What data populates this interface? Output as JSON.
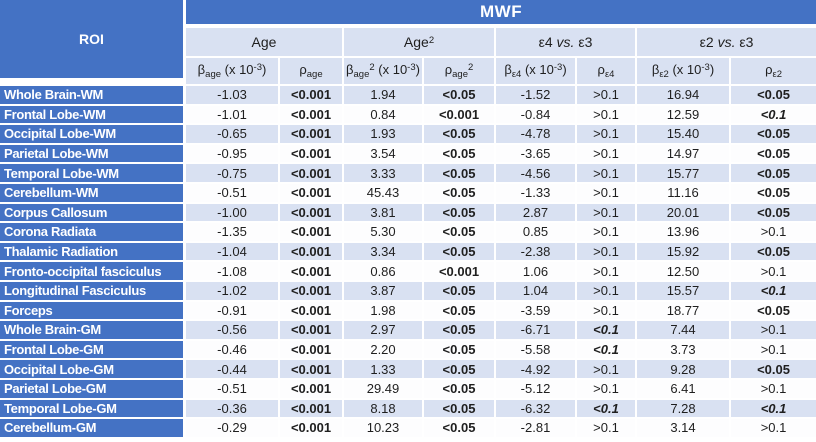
{
  "colors": {
    "header_blue": "#4472C4",
    "band_light": "#D9E1F2",
    "band_white": "#FDFDFE",
    "text_dark": "#1F1F1F"
  },
  "chart_data": {
    "type": "table",
    "title": "MWF",
    "row_header": "ROI",
    "column_groups": [
      {
        "id": "age",
        "pre": "Age",
        "sup": "",
        "it": "",
        "post": ""
      },
      {
        "id": "age2",
        "pre": "Age",
        "sup": "2",
        "it": "",
        "post": ""
      },
      {
        "id": "e4-vs-e3",
        "pre": "ε4 ",
        "sup": "",
        "it": "vs.",
        "post": " ε3"
      },
      {
        "id": "e2-vs-e3",
        "pre": "ε2 ",
        "sup": "",
        "it": "vs.",
        "post": " ε3"
      }
    ],
    "columns": [
      {
        "id": "beta-age",
        "sym": "β",
        "sub": "age",
        "sup": "",
        "unit": " (x 10",
        "exp": "-3",
        "close": ")"
      },
      {
        "id": "p-age",
        "sym": "ρ",
        "sub": "age",
        "sup": "",
        "unit": "",
        "exp": "",
        "close": ""
      },
      {
        "id": "beta-age2",
        "sym": "β",
        "sub": "age",
        "sup": "2",
        "unit": " (x 10",
        "exp": "-3",
        "close": ")"
      },
      {
        "id": "p-age2",
        "sym": "ρ",
        "sub": "age",
        "sup": "2",
        "unit": "",
        "exp": "",
        "close": ""
      },
      {
        "id": "beta-e4",
        "sym": "β",
        "sub": "ε4",
        "sup": "",
        "unit": " (x 10",
        "exp": "-3",
        "close": ")"
      },
      {
        "id": "p-e4",
        "sym": "ρ",
        "sub": "ε4",
        "sup": "",
        "unit": "",
        "exp": "",
        "close": ""
      },
      {
        "id": "beta-e2",
        "sym": "β",
        "sub": "ε2",
        "sup": "",
        "unit": " (x 10",
        "exp": "-3",
        "close": ")"
      },
      {
        "id": "p-e2",
        "sym": "ρ",
        "sub": "ε2",
        "sup": "",
        "unit": "",
        "exp": "",
        "close": ""
      }
    ],
    "rows": [
      {
        "roi": "Whole Brain-WM",
        "values": [
          "-1.03",
          "<0.001",
          "1.94",
          "<0.05",
          "-1.52",
          ">0.1",
          "16.94",
          "<0.05"
        ]
      },
      {
        "roi": "Frontal Lobe-WM",
        "values": [
          "-1.01",
          "<0.001",
          "0.84",
          "<0.001",
          "-0.84",
          ">0.1",
          "12.59",
          "<0.1"
        ]
      },
      {
        "roi": "Occipital Lobe-WM",
        "values": [
          "-0.65",
          "<0.001",
          "1.93",
          "<0.05",
          "-4.78",
          ">0.1",
          "15.40",
          "<0.05"
        ]
      },
      {
        "roi": "Parietal Lobe-WM",
        "values": [
          "-0.95",
          "<0.001",
          "3.54",
          "<0.05",
          "-3.65",
          ">0.1",
          "14.97",
          "<0.05"
        ]
      },
      {
        "roi": "Temporal Lobe-WM",
        "values": [
          "-0.75",
          "<0.001",
          "3.33",
          "<0.05",
          "-4.56",
          ">0.1",
          "15.77",
          "<0.05"
        ]
      },
      {
        "roi": "Cerebellum-WM",
        "values": [
          "-0.51",
          "<0.001",
          "45.43",
          "<0.05",
          "-1.33",
          ">0.1",
          "11.16",
          "<0.05"
        ]
      },
      {
        "roi": "Corpus Callosum",
        "values": [
          "-1.00",
          "<0.001",
          "3.81",
          "<0.05",
          "2.87",
          ">0.1",
          "20.01",
          "<0.05"
        ]
      },
      {
        "roi": "Corona Radiata",
        "values": [
          "-1.35",
          "<0.001",
          "5.30",
          "<0.05",
          "0.85",
          ">0.1",
          "13.96",
          ">0.1"
        ]
      },
      {
        "roi": "Thalamic Radiation",
        "values": [
          "-1.04",
          "<0.001",
          "3.34",
          "<0.05",
          "-2.38",
          ">0.1",
          "15.92",
          "<0.05"
        ]
      },
      {
        "roi": "Fronto-occipital fasciculus",
        "values": [
          "-1.08",
          "<0.001",
          "0.86",
          "<0.001",
          "1.06",
          ">0.1",
          "12.50",
          ">0.1"
        ]
      },
      {
        "roi": "Longitudinal Fasciculus",
        "values": [
          "-1.02",
          "<0.001",
          "3.87",
          "<0.05",
          "1.04",
          ">0.1",
          "15.57",
          "<0.1"
        ]
      },
      {
        "roi": "Forceps",
        "values": [
          "-0.91",
          "<0.001",
          "1.98",
          "<0.05",
          "-3.59",
          ">0.1",
          "18.77",
          "<0.05"
        ]
      },
      {
        "roi": "Whole Brain-GM",
        "values": [
          "-0.56",
          "<0.001",
          "2.97",
          "<0.05",
          "-6.71",
          "<0.1",
          "7.44",
          ">0.1"
        ]
      },
      {
        "roi": "Frontal Lobe-GM",
        "values": [
          "-0.46",
          "<0.001",
          "2.20",
          "<0.05",
          "-5.58",
          "<0.1",
          "3.73",
          ">0.1"
        ]
      },
      {
        "roi": "Occipital Lobe-GM",
        "values": [
          "-0.44",
          "<0.001",
          "1.33",
          "<0.05",
          "-4.92",
          ">0.1",
          "9.28",
          "<0.05"
        ]
      },
      {
        "roi": "Parietal Lobe-GM",
        "values": [
          "-0.51",
          "<0.001",
          "29.49",
          "<0.05",
          "-5.12",
          ">0.1",
          "6.41",
          ">0.1"
        ]
      },
      {
        "roi": "Temporal Lobe-GM",
        "values": [
          "-0.36",
          "<0.001",
          "8.18",
          "<0.05",
          "-6.32",
          "<0.1",
          "7.28",
          "<0.1"
        ]
      },
      {
        "roi": "Cerebellum-GM",
        "values": [
          "-0.29",
          "<0.001",
          "10.23",
          "<0.05",
          "-2.81",
          ">0.1",
          "3.14",
          ">0.1"
        ]
      }
    ]
  }
}
